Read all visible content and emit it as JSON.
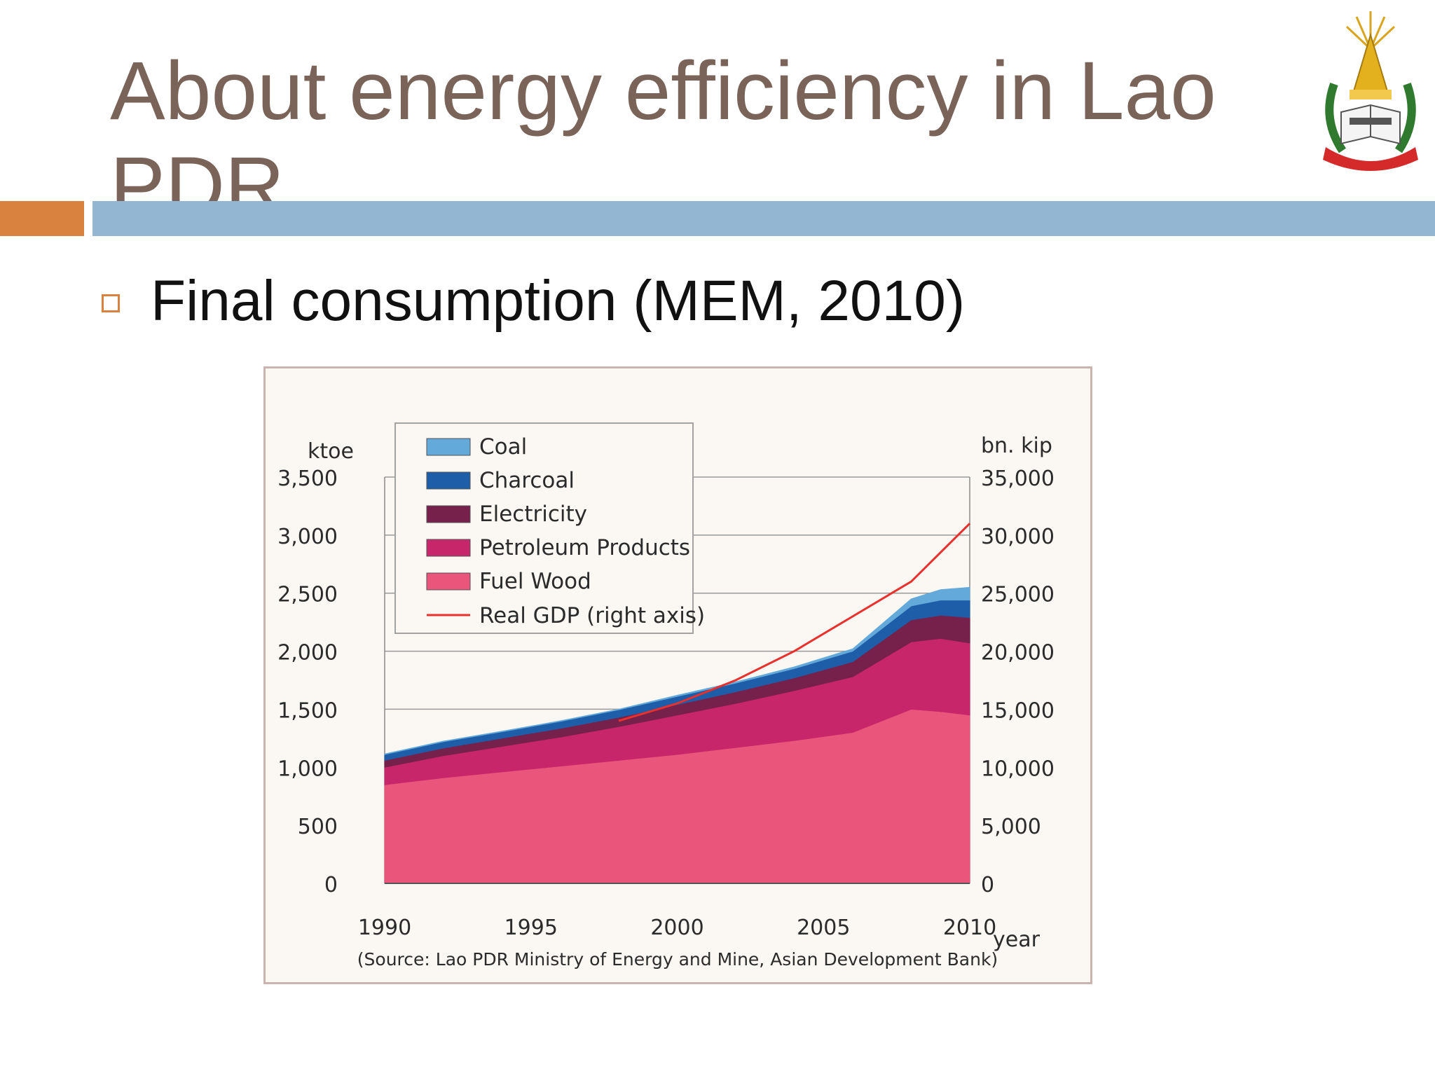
{
  "slide": {
    "title": "About energy efficiency in Lao PDR",
    "bullet": "Final consumption (MEM, 2010)",
    "accent_orange": "#d9813f",
    "accent_blue": "#93b6d2"
  },
  "chart_data": {
    "type": "area",
    "stacked": true,
    "x": [
      1990,
      1992,
      1994,
      1996,
      1998,
      2000,
      2002,
      2004,
      2006,
      2008,
      2009,
      2010
    ],
    "xticks": [
      1990,
      1995,
      2000,
      2005,
      2010
    ],
    "xtick_labels": [
      "1990",
      "1995",
      "2000",
      "2005",
      "2010"
    ],
    "xlabel": "year",
    "left_axis": {
      "label": "ktoe",
      "range": [
        0,
        3500
      ],
      "ticks": [
        0,
        500,
        1000,
        1500,
        2000,
        2500,
        3000,
        3500
      ],
      "tick_labels": [
        "0",
        "500",
        "1,000",
        "1,500",
        "2,000",
        "2,500",
        "3,000",
        "3,500"
      ]
    },
    "right_axis": {
      "label": "bn. kip",
      "range": [
        0,
        35000
      ],
      "ticks": [
        0,
        5000,
        10000,
        15000,
        20000,
        25000,
        30000,
        35000
      ],
      "tick_labels": [
        "0",
        "5,000",
        "10,000",
        "15,000",
        "20,000",
        "25,000",
        "30,000",
        "35,000"
      ]
    },
    "grid": true,
    "legend_position": "top-left",
    "series": [
      {
        "name": "Fuel Wood",
        "color": "#e9557b",
        "values": [
          850,
          910,
          960,
          1010,
          1060,
          1110,
          1170,
          1230,
          1300,
          1500,
          1480,
          1450
        ]
      },
      {
        "name": "Petroleum Products",
        "color": "#c7266a",
        "values": [
          150,
          190,
          220,
          250,
          290,
          340,
          380,
          430,
          480,
          580,
          630,
          620
        ]
      },
      {
        "name": "Electricity",
        "color": "#76204c",
        "values": [
          60,
          65,
          70,
          75,
          80,
          90,
          100,
          110,
          130,
          190,
          200,
          220
        ]
      },
      {
        "name": "Charcoal",
        "color": "#1e5ea8",
        "values": [
          50,
          55,
          55,
          60,
          65,
          70,
          75,
          80,
          90,
          120,
          130,
          150
        ]
      },
      {
        "name": "Coal",
        "color": "#63a9d9",
        "values": [
          5,
          5,
          5,
          5,
          5,
          10,
          10,
          15,
          20,
          60,
          90,
          110
        ]
      }
    ],
    "line": {
      "name": "Real GDP (right axis)",
      "axis": "right",
      "color": "#e8302c",
      "values": [
        null,
        null,
        null,
        null,
        14000,
        15500,
        17500,
        20000,
        23000,
        26000,
        28500,
        31000
      ]
    },
    "source": "(Source: Lao PDR Ministry of Energy and Mine, Asian Development Bank)"
  }
}
